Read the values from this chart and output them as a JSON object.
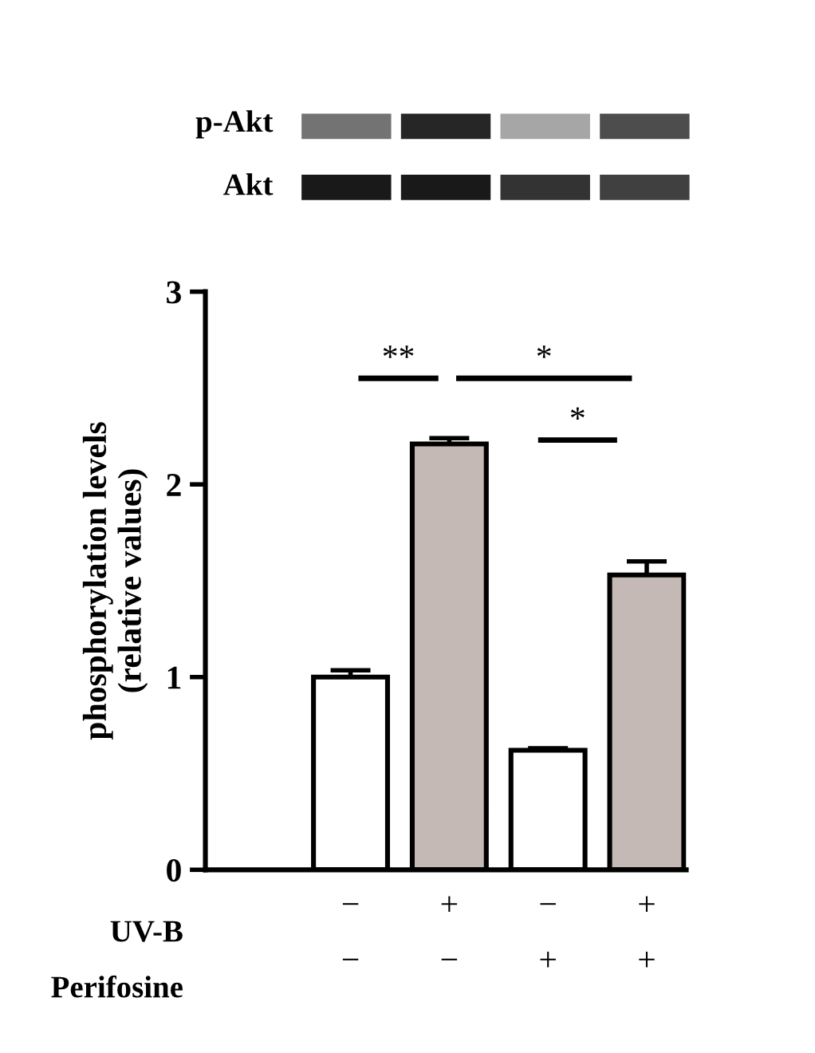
{
  "chart_data": {
    "type": "bar",
    "ylabel": "phosphorylation levels\n(relative values)",
    "categories": [
      "−\n−",
      "+\n−",
      "−\n+",
      "+\n+"
    ],
    "values": [
      1.0,
      2.21,
      0.62,
      1.53
    ],
    "colors": [
      "#ffffff",
      "#c4b9b4",
      "#ffffff",
      "#c4b9b4"
    ],
    "errors": [
      0.035,
      0.03,
      0.01,
      0.07
    ],
    "ylim": [
      0,
      3
    ],
    "yticks": [
      0,
      1,
      2,
      3
    ],
    "grid": false,
    "legend": false,
    "annotations": [
      "p-Akt",
      "Akt",
      "UV-B",
      "Perifosine",
      "**",
      "*",
      "*"
    ]
  }
}
